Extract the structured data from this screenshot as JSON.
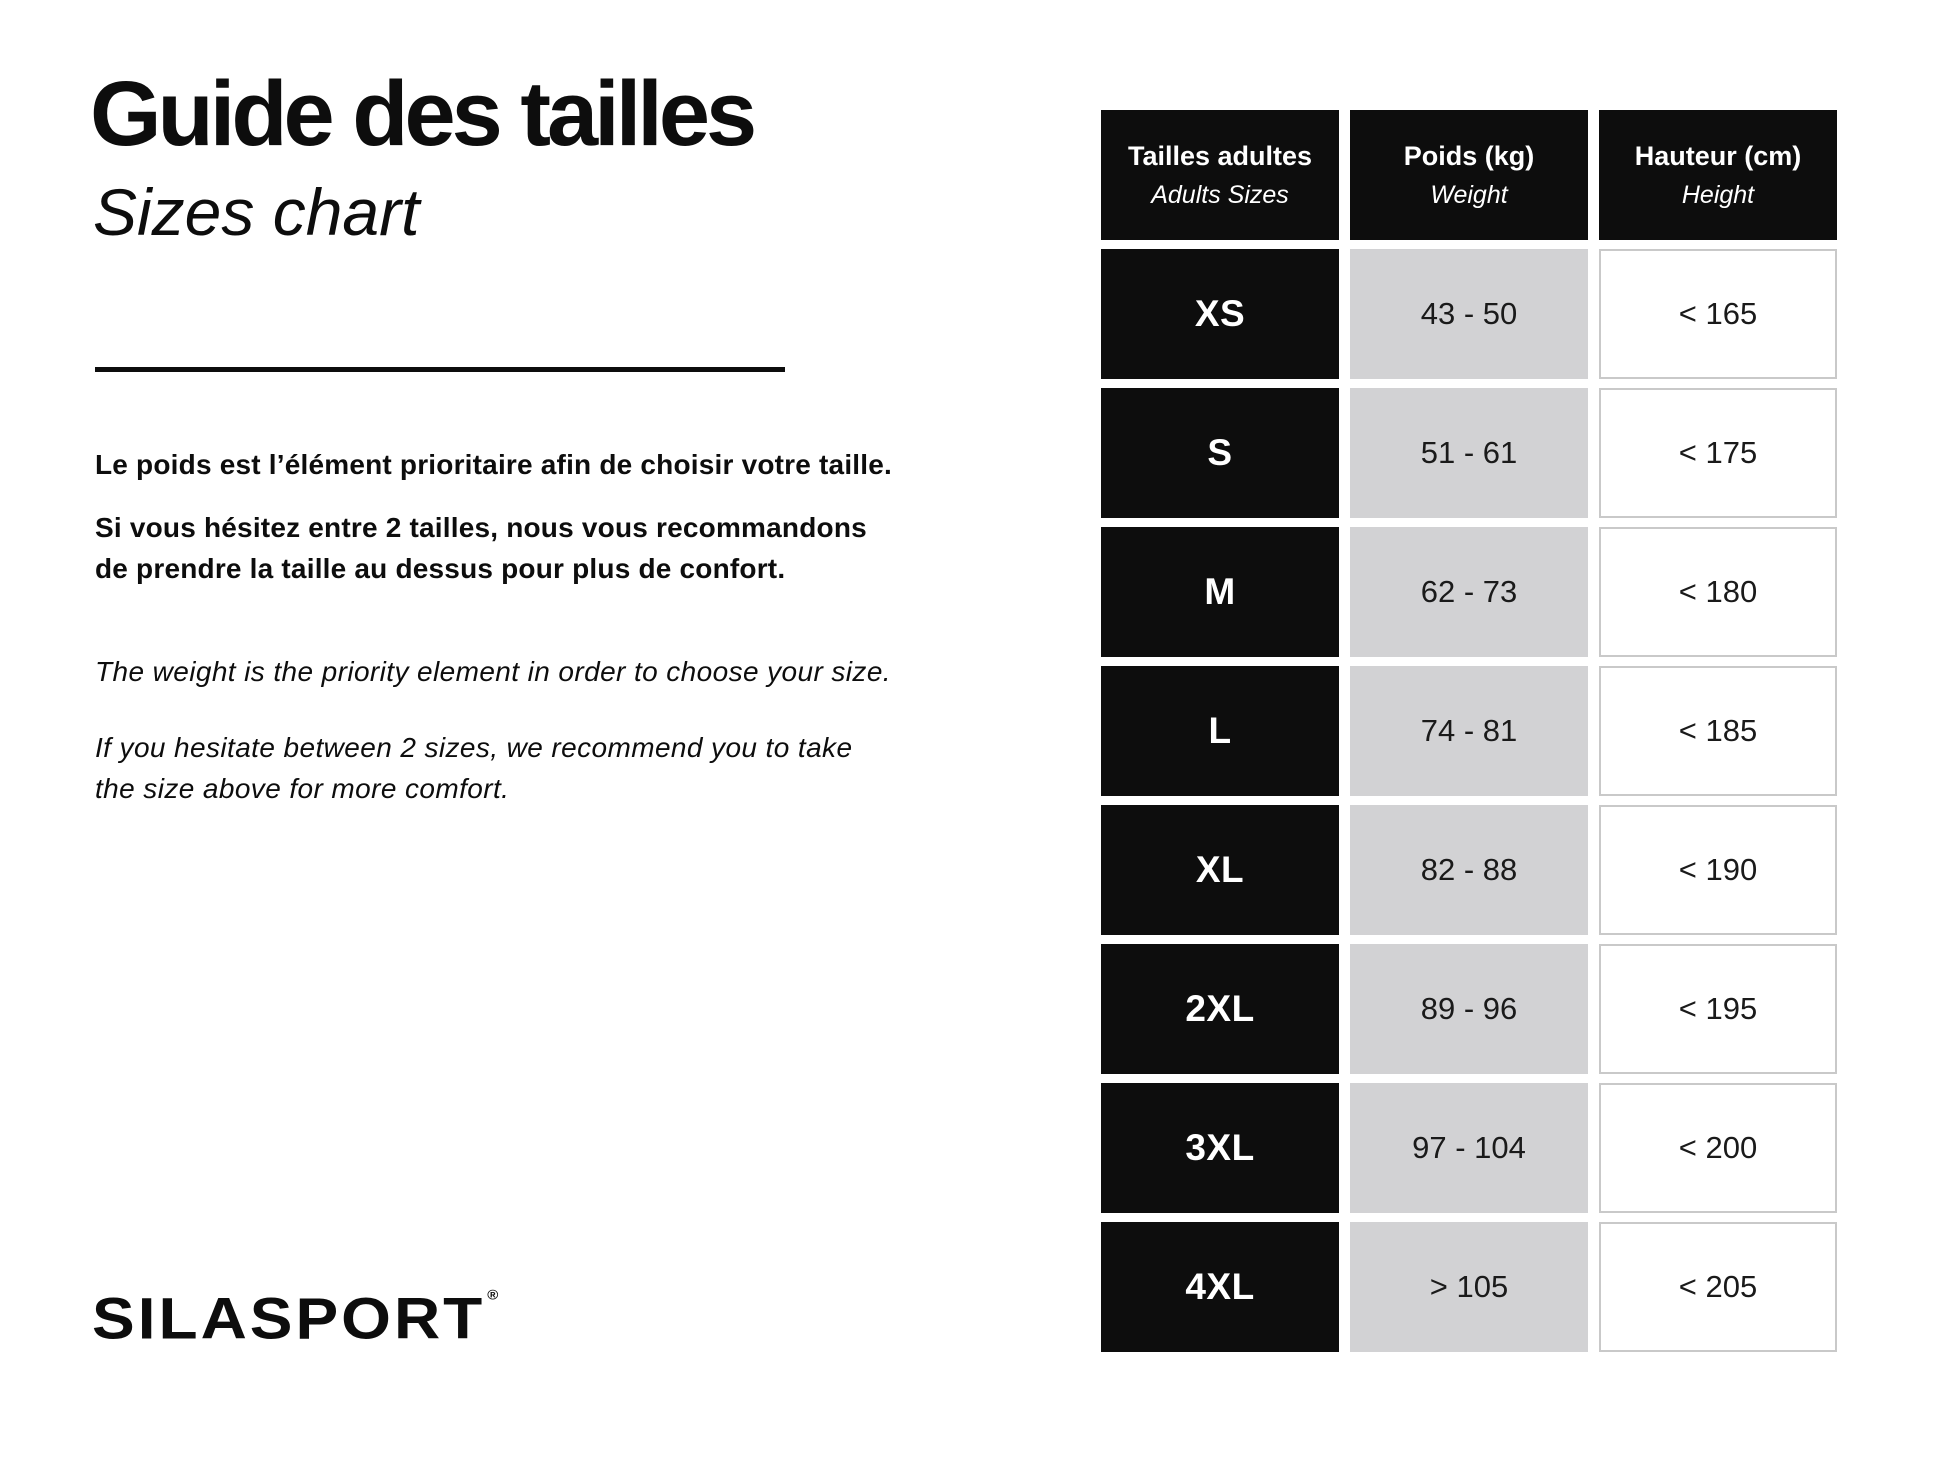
{
  "colors": {
    "ink_black": "#0d0d0d",
    "cell_black": "#0d0d0d",
    "cell_gray": "#d2d2d4",
    "cell_border": "#c9c9c9",
    "background": "#ffffff"
  },
  "header": {
    "title_fr": "Guide des tailles",
    "title_en": "Sizes chart"
  },
  "intro": {
    "paragraphs": [
      {
        "lang": "fr",
        "lines": [
          "Le poids est l’élément prioritaire afin de choisir votre taille."
        ]
      },
      {
        "lang": "fr",
        "lines": [
          "Si vous hésitez entre 2 tailles, nous vous recommandons",
          "de prendre la taille au dessus pour plus de confort."
        ]
      },
      {
        "lang": "en",
        "lines": [
          "The weight is the priority element in order to choose your size."
        ]
      },
      {
        "lang": "en",
        "lines": [
          "If you hesitate between 2 sizes, we recommend you to take",
          "the size above for more comfort."
        ]
      }
    ]
  },
  "logo": {
    "text": "SILASPORT",
    "reg": "®"
  },
  "size_table": {
    "columns": [
      {
        "fr": "Tailles adultes",
        "en": "Adults Sizes"
      },
      {
        "fr": "Poids (kg)",
        "en": "Weight"
      },
      {
        "fr": "Hauteur (cm)",
        "en": "Height"
      }
    ],
    "rows": [
      {
        "size": "XS",
        "weight": "43 - 50",
        "height": "< 165"
      },
      {
        "size": "S",
        "weight": "51 - 61",
        "height": "< 175"
      },
      {
        "size": "M",
        "weight": "62 - 73",
        "height": "< 180"
      },
      {
        "size": "L",
        "weight": "74 - 81",
        "height": "< 185"
      },
      {
        "size": "XL",
        "weight": "82 - 88",
        "height": "< 190"
      },
      {
        "size": "2XL",
        "weight": "89 - 96",
        "height": "< 195"
      },
      {
        "size": "3XL",
        "weight": "97 - 104",
        "height": "< 200"
      },
      {
        "size": "4XL",
        "weight": "> 105",
        "height": "< 205"
      }
    ]
  },
  "chart_data": {
    "type": "table",
    "title": "Guide des tailles / Sizes chart",
    "columns": [
      "Tailles adultes / Adults Sizes",
      "Poids (kg) / Weight",
      "Hauteur (cm) / Height"
    ],
    "rows": [
      [
        "XS",
        "43 - 50",
        "< 165"
      ],
      [
        "S",
        "51 - 61",
        "< 175"
      ],
      [
        "M",
        "62 - 73",
        "< 180"
      ],
      [
        "L",
        "74 - 81",
        "< 185"
      ],
      [
        "XL",
        "82 - 88",
        "< 190"
      ],
      [
        "2XL",
        "89 - 96",
        "< 195"
      ],
      [
        "3XL",
        "97 - 104",
        "< 200"
      ],
      [
        "4XL",
        "> 105",
        "< 205"
      ]
    ]
  }
}
